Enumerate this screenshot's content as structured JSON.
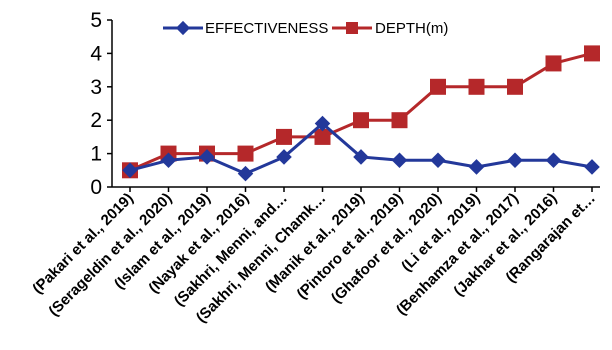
{
  "chart_data": {
    "type": "line",
    "categories": [
      "(Pakari et al., 2019)",
      "(Serageldin et al., 2020)",
      "(Islam et al., 2019)",
      "(Nayak et al., 2016)",
      "(Sakhri, Menni, and…",
      "(Sakhri, Menni, Chamk…",
      "(Manik et al., 2019)",
      "(Pintoro et al., 2019)",
      "(Ghafoor et al., 2020)",
      "(Li et al., 2019)",
      "(Benhamza et al., 2017)",
      "(Jakhar et al., 2016)",
      "(Rangarajan et…"
    ],
    "series": [
      {
        "name": "EFFECTIVENESS",
        "color": "#23389a",
        "marker": "diamond",
        "values": [
          0.5,
          0.8,
          0.9,
          0.4,
          0.9,
          1.9,
          0.9,
          0.8,
          0.8,
          0.6,
          0.8,
          0.8,
          0.6
        ]
      },
      {
        "name": "DEPTH(m)",
        "color": "#b5282a",
        "marker": "square",
        "values": [
          0.5,
          1.0,
          1.0,
          1.0,
          1.5,
          1.5,
          2.0,
          2.0,
          3.0,
          3.0,
          3.0,
          3.7,
          4.0
        ]
      }
    ],
    "ylim": [
      0,
      5
    ],
    "yticks": [
      "0",
      "1",
      "2",
      "3",
      "4",
      "5"
    ],
    "grid": false,
    "legend_position": "top"
  }
}
